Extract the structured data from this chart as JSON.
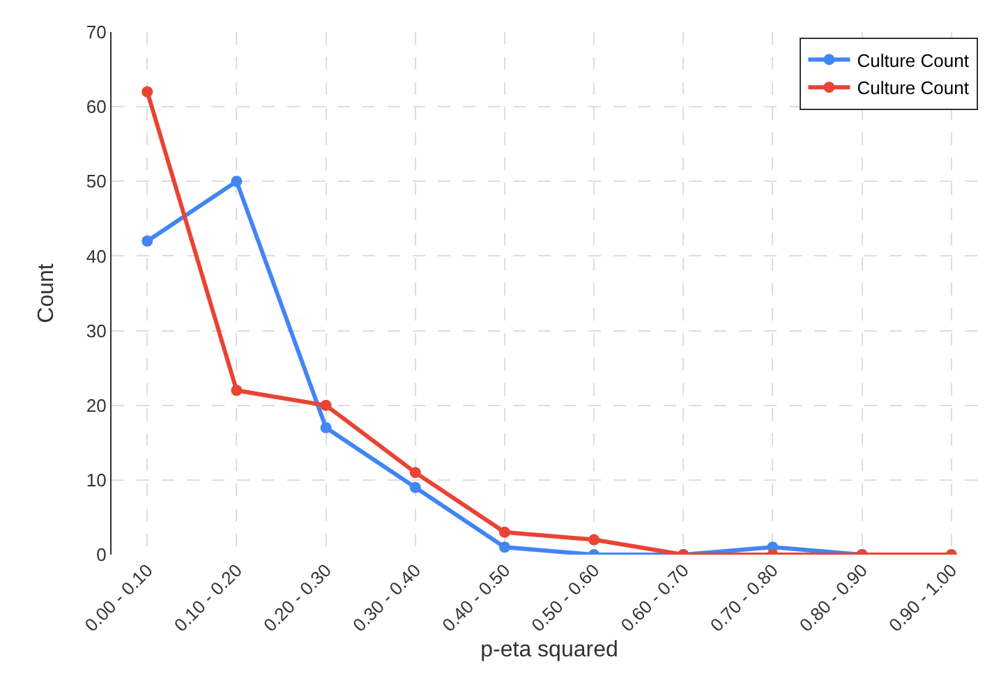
{
  "chart_data": {
    "type": "line",
    "xlabel": "p-eta squared",
    "ylabel": "Count",
    "categories": [
      "0.00 - 0.10",
      "0.10 - 0.20",
      "0.20 - 0.30",
      "0.30 - 0.40",
      "0.40 - 0.50",
      "0.50 - 0.60",
      "0.60 - 0.70",
      "0.70 - 0.80",
      "0.80 - 0.90",
      "0.90 - 1.00"
    ],
    "series": [
      {
        "name": "Culture Count",
        "color": "#4285f4",
        "values": [
          42,
          50,
          17,
          9,
          1,
          0,
          0,
          1,
          0,
          null
        ]
      },
      {
        "name": "Culture Count",
        "color": "#ea4335",
        "values": [
          62,
          22,
          20,
          11,
          3,
          2,
          0,
          0,
          0,
          0
        ]
      }
    ],
    "ylim": [
      0,
      70
    ],
    "yticks": [
      0,
      10,
      20,
      30,
      40,
      50,
      60,
      70
    ],
    "grid": true,
    "legend": "top right",
    "marker": "circle",
    "line_style": "solid"
  }
}
